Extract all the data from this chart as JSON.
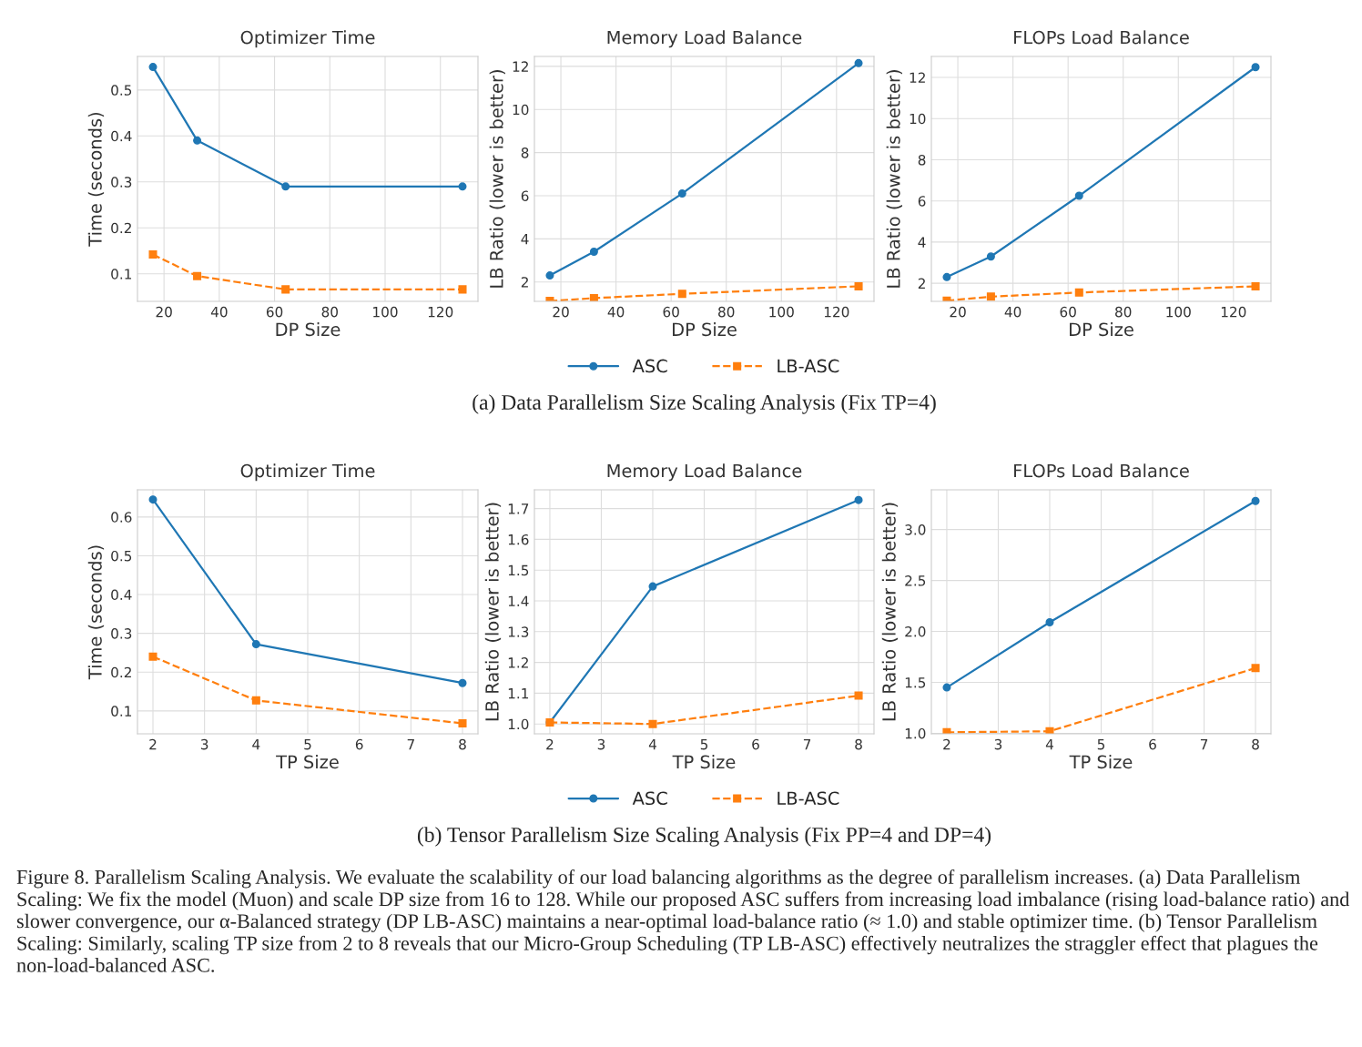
{
  "chart_data": [
    {
      "type": "line",
      "title": "Optimizer Time",
      "xlabel": "DP Size",
      "ylabel": "Time (seconds)",
      "x": [
        16,
        32,
        64,
        128
      ],
      "xlim": [
        10.4,
        133.6
      ],
      "xticks": [
        20,
        40,
        60,
        80,
        100,
        120
      ],
      "ylim": [
        0.04,
        0.573
      ],
      "yticks": [
        0.1,
        0.2,
        0.3,
        0.4,
        0.5
      ],
      "grid": true,
      "legend": false,
      "series": [
        {
          "color": "#1f77b4",
          "marker": "circle",
          "line_style": "solid",
          "values": [
            0.55,
            0.39,
            0.29,
            0.29
          ]
        },
        {
          "color": "#ff7f0e",
          "marker": "square",
          "line_style": "dashed",
          "values": [
            0.142,
            0.095,
            0.066,
            0.066
          ]
        }
      ]
    },
    {
      "type": "line",
      "title": "Memory Load Balance",
      "xlabel": "DP Size",
      "ylabel": "LB Ratio (lower is better)",
      "x": [
        16,
        32,
        64,
        128
      ],
      "xlim": [
        10.4,
        133.6
      ],
      "xticks": [
        20,
        40,
        60,
        80,
        100,
        120
      ],
      "ylim": [
        1.1,
        12.46
      ],
      "yticks": [
        2,
        4,
        6,
        8,
        10,
        12
      ],
      "grid": true,
      "legend": "bottom",
      "annotations": [
        "(a) Data Parallelism Size Scaling Analysis (Fix TP=4)"
      ],
      "series": [
        {
          "name": "ASC",
          "color": "#1f77b4",
          "marker": "circle",
          "line_style": "solid",
          "values": [
            2.3,
            3.4,
            6.1,
            12.15
          ]
        },
        {
          "name": "LB-ASC",
          "color": "#ff7f0e",
          "marker": "square",
          "line_style": "dashed",
          "values": [
            1.12,
            1.25,
            1.45,
            1.8
          ]
        }
      ]
    },
    {
      "type": "line",
      "title": "FLOPs Load Balance",
      "xlabel": "DP Size",
      "ylabel": "LB Ratio (lower is better)",
      "x": [
        16,
        32,
        64,
        128
      ],
      "xlim": [
        10.4,
        133.6
      ],
      "xticks": [
        20,
        40,
        60,
        80,
        100,
        120
      ],
      "ylim": [
        1.12,
        13.02
      ],
      "yticks": [
        2,
        4,
        6,
        8,
        10,
        12
      ],
      "grid": true,
      "legend": false,
      "series": [
        {
          "color": "#1f77b4",
          "marker": "circle",
          "line_style": "solid",
          "values": [
            2.3,
            3.3,
            6.25,
            12.5
          ]
        },
        {
          "color": "#ff7f0e",
          "marker": "square",
          "line_style": "dashed",
          "values": [
            1.15,
            1.35,
            1.55,
            1.85
          ]
        }
      ]
    },
    {
      "type": "line",
      "title": "Optimizer Time",
      "xlabel": "TP Size",
      "ylabel": "Time (seconds)",
      "x": [
        2,
        4,
        8
      ],
      "xlim": [
        1.7,
        8.3
      ],
      "xticks": [
        2,
        3,
        4,
        5,
        6,
        7,
        8
      ],
      "ylim": [
        0.041,
        0.67
      ],
      "yticks": [
        0.1,
        0.2,
        0.3,
        0.4,
        0.5,
        0.6
      ],
      "grid": true,
      "legend": false,
      "series": [
        {
          "color": "#1f77b4",
          "marker": "circle",
          "line_style": "solid",
          "values": [
            0.645,
            0.272,
            0.172
          ]
        },
        {
          "color": "#ff7f0e",
          "marker": "square",
          "line_style": "dashed",
          "values": [
            0.24,
            0.127,
            0.068
          ]
        }
      ]
    },
    {
      "type": "line",
      "title": "Memory Load Balance",
      "xlabel": "TP Size",
      "ylabel": "LB Ratio (lower is better)",
      "x": [
        2,
        4,
        8
      ],
      "xlim": [
        1.7,
        8.3
      ],
      "xticks": [
        2,
        3,
        4,
        5,
        6,
        7,
        8
      ],
      "ylim": [
        0.968,
        1.761
      ],
      "yticks": [
        {
          "value": 1,
          "label": "1.0"
        },
        1.1,
        1.2,
        1.3,
        1.4,
        1.5,
        1.6,
        1.7
      ],
      "grid": true,
      "legend": "bottom",
      "annotations": [
        "(b) Tensor Parallelism Size Scaling Analysis (Fix PP=4 and DP=4)",
        "Figure 8. Parallelism Scaling Analysis. We evaluate the scalability of our load balancing algorithms as the degree of parallelism increases. (a) Data Parallelism Scaling: We fix the model (Muon) and scale DP size from 16 to 128. While our proposed ASC suffers from increasing load imbalance (rising load-balance ratio) and slower convergence, our α-Balanced strategy (DP LB-ASC) maintains a near-optimal load-balance ratio (≈ 1.0) and stable optimizer time. (b) Tensor Parallelism Scaling: Similarly, scaling TP size from 2 to 8 reveals that our Micro-Group Scheduling (TP LB-ASC) effectively neutralizes the straggler effect that plagues the non-load-balanced ASC."
      ],
      "series": [
        {
          "name": "ASC",
          "color": "#1f77b4",
          "marker": "circle",
          "line_style": "solid",
          "values": [
            1.005,
            1.447,
            1.728
          ]
        },
        {
          "name": "LB-ASC",
          "color": "#ff7f0e",
          "marker": "square",
          "line_style": "dashed",
          "values": [
            1.005,
            1.0,
            1.092
          ]
        }
      ]
    },
    {
      "type": "line",
      "title": "FLOPs Load Balance",
      "xlabel": "TP Size",
      "ylabel": "LB Ratio (lower is better)",
      "x": [
        2,
        4,
        8
      ],
      "xlim": [
        1.7,
        8.3
      ],
      "xticks": [
        2,
        3,
        4,
        5,
        6,
        7,
        8
      ],
      "ylim": [
        0.995,
        3.39
      ],
      "yticks": [
        {
          "value": 1,
          "label": "1.0"
        },
        1.5,
        {
          "value": 2,
          "label": "2.0"
        },
        2.5,
        {
          "value": 3,
          "label": "3.0"
        }
      ],
      "grid": true,
      "legend": false,
      "series": [
        {
          "color": "#1f77b4",
          "marker": "circle",
          "line_style": "solid",
          "values": [
            1.45,
            2.09,
            3.28
          ]
        },
        {
          "color": "#ff7f0e",
          "marker": "square",
          "line_style": "dashed",
          "values": [
            1.01,
            1.02,
            1.64
          ]
        }
      ]
    }
  ]
}
